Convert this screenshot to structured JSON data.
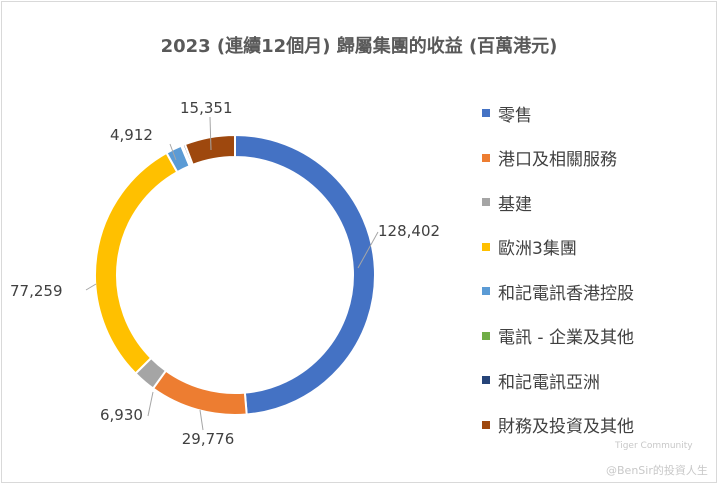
{
  "chart_data": {
    "type": "pie",
    "title": "2023 (連續12個月) 歸屬集團的收益 (百萬港元)",
    "labels": [
      "零售",
      "港口及相關服務",
      "基建",
      "歐洲3集團",
      "和記電訊香港控股",
      "電訊 - 企業及其他",
      "和記電訊亞洲",
      "財務及投資及其他"
    ],
    "values": [
      128402,
      29776,
      6930,
      77259,
      4912,
      500,
      700,
      15351
    ],
    "data_labels": [
      "128,402",
      "29,776",
      "6,930",
      "77,259",
      "4,912",
      "",
      "",
      "15,351"
    ],
    "colors": [
      "#4472C4",
      "#ED7D31",
      "#A5A5A5",
      "#FFC000",
      "#5B9BD5",
      "#70AD47",
      "#264478",
      "#9E480E"
    ],
    "legend_position": "right",
    "donut": true
  },
  "watermark": {
    "line1": "Tiger Community",
    "line2": "@BenSir的投資人生"
  }
}
